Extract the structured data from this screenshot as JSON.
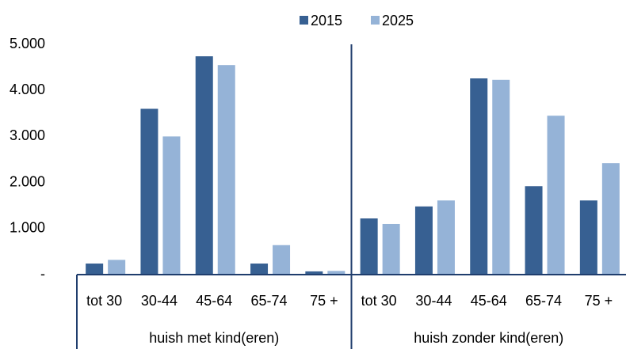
{
  "chart_data": {
    "type": "bar",
    "groups": [
      {
        "name": "huish met kind(eren)",
        "categories": [
          "tot 30",
          "30-44",
          "45-64",
          "65-74",
          "75 +"
        ]
      },
      {
        "name": "huish zonder kind(eren)",
        "categories": [
          "tot 30",
          "30-44",
          "45-64",
          "65-74",
          "75 +"
        ]
      }
    ],
    "series": [
      {
        "name": "2015",
        "color": "#376092",
        "values": [
          240,
          3600,
          4740,
          240,
          70,
          1220,
          1480,
          4260,
          1920,
          1610
        ]
      },
      {
        "name": "2025",
        "color": "#95b3d7",
        "values": [
          320,
          3000,
          4550,
          640,
          80,
          1100,
          1610,
          4230,
          3450,
          2420
        ]
      }
    ],
    "ylim": [
      0,
      5000
    ],
    "yticks": [
      {
        "value": 0,
        "label": "-"
      },
      {
        "value": 1000,
        "label": "1.000"
      },
      {
        "value": 2000,
        "label": "2.000"
      },
      {
        "value": 3000,
        "label": "3.000"
      },
      {
        "value": 4000,
        "label": "4.000"
      },
      {
        "value": 5000,
        "label": "5.000"
      }
    ],
    "grid": false,
    "legend": "top"
  }
}
